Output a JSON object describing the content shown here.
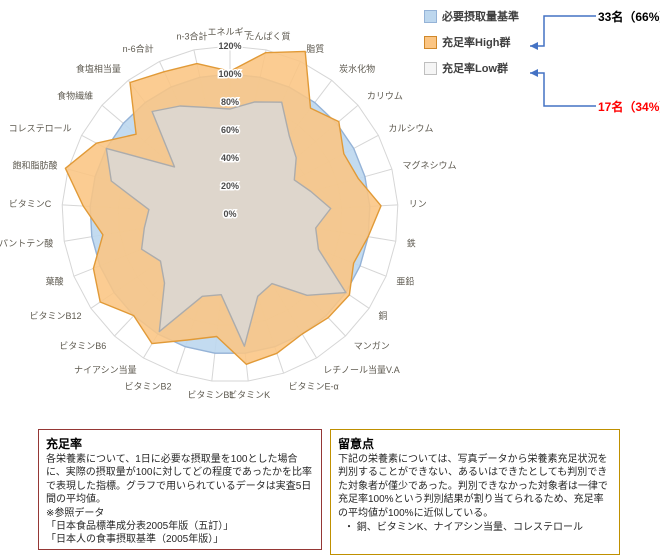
{
  "chart_data": {
    "type": "radar",
    "title": "",
    "categories": [
      "エネルギー",
      "たんぱく質",
      "脂質",
      "炭水化物",
      "カリウム",
      "カルシウム",
      "マグネシウム",
      "リン",
      "鉄",
      "亜鉛",
      "銅",
      "マンガン",
      "レチノール当量V.A",
      "ビタミンE-α",
      "ビタミンK",
      "ビタミンB1",
      "ビタミンB2",
      "ナイアシン当量",
      "ビタミンB6",
      "ビタミンB12",
      "葉酸",
      "パントテン酸",
      "ビタミンC",
      "飽和脂肪酸",
      "コレステロール",
      "食物繊維",
      "食塩相当量",
      "n-6合計",
      "n-3合計"
    ],
    "axis": {
      "min": 0,
      "max": 120,
      "step": 20,
      "tick_labels": [
        "0%",
        "20%",
        "40%",
        "60%",
        "80%",
        "100%",
        "120%"
      ],
      "unit": "%"
    },
    "grid": true,
    "legend_position": "top-right",
    "series": [
      {
        "name": "必要摂取量基準",
        "fill": "#BDD7EE",
        "stroke": "#95B3D7",
        "fill_opacity": 0.9,
        "values": [
          100,
          100,
          100,
          100,
          100,
          100,
          100,
          100,
          100,
          100,
          100,
          100,
          100,
          100,
          100,
          100,
          100,
          100,
          100,
          100,
          100,
          100,
          100,
          100,
          100,
          100,
          100,
          100,
          100
        ]
      },
      {
        "name": "充足率High群",
        "fill": "#FBC583",
        "stroke": "#E19A37",
        "fill_opacity": 0.88,
        "values": [
          102,
          118,
          128,
          95,
          102,
          92,
          95,
          108,
          100,
          95,
          103,
          102,
          100,
          105,
          108,
          88,
          95,
          108,
          100,
          112,
          105,
          92,
          105,
          122,
          108,
          88,
          118,
          112,
          110
        ]
      },
      {
        "name": "充足率Low群",
        "fill": "#D9D9D9",
        "stroke": "#ACACAC",
        "fill_opacity": 0.82,
        "values": [
          75,
          82,
          88,
          70,
          62,
          52,
          60,
          72,
          62,
          68,
          100,
          80,
          58,
          62,
          95,
          58,
          62,
          98,
          68,
          60,
          68,
          62,
          58,
          88,
          100,
          52,
          92,
          85,
          78
        ]
      }
    ]
  },
  "legend": {
    "items": [
      {
        "label": "必要摂取量基準",
        "fill": "#BDD7EE",
        "stroke": "#95B3D7"
      },
      {
        "label": "充足率High群",
        "fill": "#FBC583",
        "stroke": "#D0882A"
      },
      {
        "label": "充足率Low群",
        "fill": "#F5F5F5",
        "stroke": "#BFBFBF"
      }
    ]
  },
  "annotations": {
    "high_count": "33名（66%）",
    "low_count": "17名（34%）",
    "low_color": "#FF0000",
    "connector_color": "#4472C4"
  },
  "notes_left": {
    "border_color": "#953735",
    "title": "充足率",
    "body": "各栄養素について、1日に必要な摂取量を100とした場合に、実際の摂取量が100に対してどの程度であったかを比率で表現した指標。グラフで用いられているデータは実査5日間の平均値。",
    "ref_label": "※参照データ",
    "refs": [
      "「日本食品標準成分表2005年版（五訂）」",
      "「日本人の食事摂取基準（2005年版）」"
    ]
  },
  "notes_right": {
    "border_color": "#BF9000",
    "title": "留意点",
    "body": "下記の栄養素については、写真データから栄養素充足状況を判別することができない、あるいはできたとしても判別できた対象者が僅少であった。判別できなかった対象者は一律で充足率100%という判別結果が割り当てられるため、充足率の平均値が100%に近似している。",
    "bullet": "・ 銅、ビタミンK、ナイアシン当量、コレステロール"
  }
}
